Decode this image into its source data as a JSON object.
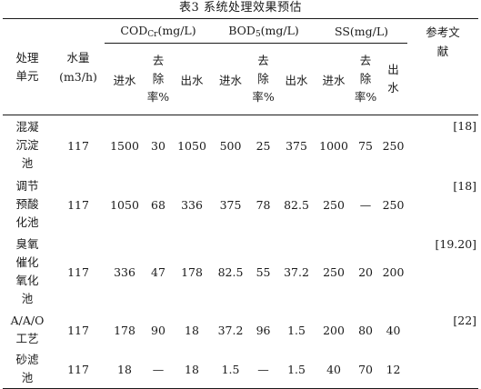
{
  "caption": "表3 系统处理效果预估",
  "header": {
    "unit": "处理\n单元",
    "flow": "水量\n(m3/h)",
    "cod_main": "COD",
    "cod_sub": "Cr",
    "cod_unit": "(mg/L)",
    "bod_main": "BOD",
    "bod_sub": "5",
    "bod_unit": "(mg/L)",
    "ss": "SS(mg/L)",
    "ref": "参考文\n献",
    "inlet": "进水",
    "removal": "去\n除\n率%",
    "outlet": "出水",
    "outlet_ss": "出\n水"
  },
  "rows": [
    {
      "unit": "混凝\n沉淀\n池",
      "flow": "117",
      "cod_in": "1500",
      "cod_rm": "30",
      "cod_out": "1050",
      "bod_in": "500",
      "bod_rm": "25",
      "bod_out": "375",
      "ss_in": "1000",
      "ss_rm": "75",
      "ss_out": "250",
      "ref": "[18]"
    },
    {
      "unit": "调节\n预酸\n化池",
      "flow": "117",
      "cod_in": "1050",
      "cod_rm": "68",
      "cod_out": "336",
      "bod_in": "375",
      "bod_rm": "78",
      "bod_out": "82.5",
      "ss_in": "250",
      "ss_rm": "—",
      "ss_out": "250",
      "ref": "[18]"
    },
    {
      "unit": "臭氧\n催化\n氧化\n池",
      "flow": "117",
      "cod_in": "336",
      "cod_rm": "47",
      "cod_out": "178",
      "bod_in": "82.5",
      "bod_rm": "55",
      "bod_out": "37.2",
      "ss_in": "250",
      "ss_rm": "20",
      "ss_out": "200",
      "ref": "[19.20]"
    },
    {
      "unit": "A/A/O\n工艺",
      "flow": "117",
      "cod_in": "178",
      "cod_rm": "90",
      "cod_out": "18",
      "bod_in": "37.2",
      "bod_rm": "96",
      "bod_out": "1.5",
      "ss_in": "200",
      "ss_rm": "80",
      "ss_out": "40",
      "ref": "[22]"
    },
    {
      "unit": "砂滤\n池",
      "flow": "117",
      "cod_in": "18",
      "cod_rm": "—",
      "cod_out": "18",
      "bod_in": "1.5",
      "bod_rm": "—",
      "bod_out": "1.5",
      "ss_in": "40",
      "ss_rm": "70",
      "ss_out": "12",
      "ref": ""
    }
  ]
}
